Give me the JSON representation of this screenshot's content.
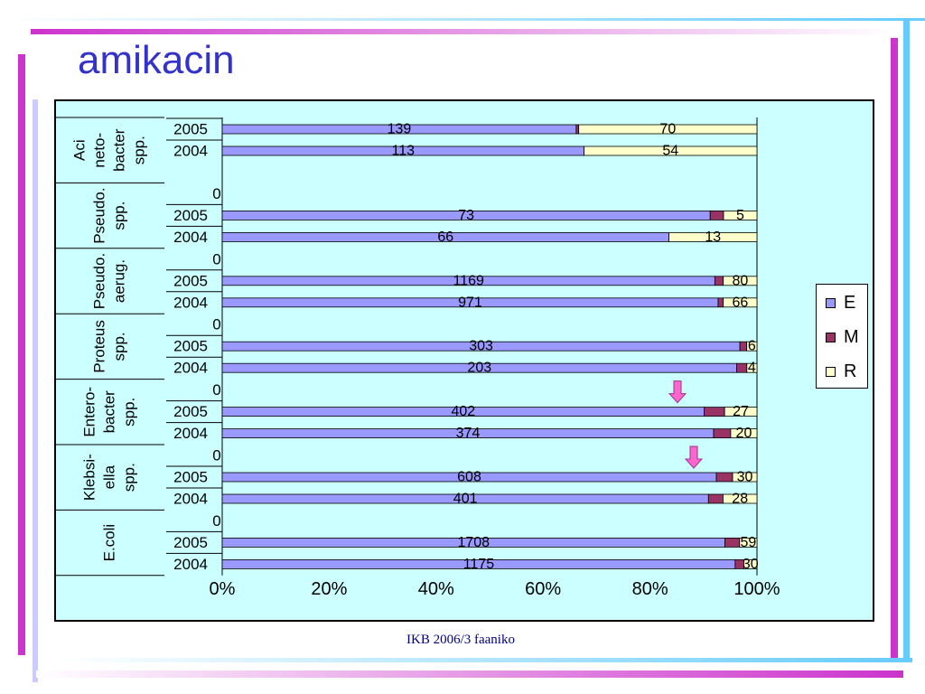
{
  "slide": {
    "title": "amikacin",
    "footer": "IKB 2006/3 faaniko"
  },
  "colors": {
    "E": "#9999ff",
    "M": "#993366",
    "R": "#ffffcc",
    "plot_background": "#ccffff",
    "title": "#3333cc",
    "arrow": "#ff66cc"
  },
  "chart_data": {
    "type": "bar",
    "orientation": "horizontal",
    "stacked": "percent",
    "x_ticks": [
      "0%",
      "20%",
      "40%",
      "60%",
      "80%",
      "100%"
    ],
    "xlim": [
      0,
      100
    ],
    "grid": false,
    "legend_position": "right",
    "legend": [
      "E",
      "M",
      "R"
    ],
    "groups": [
      {
        "label_lines": [
          "Aci",
          "neto-",
          "bacter",
          "spp."
        ],
        "rows": [
          {
            "year": "2005",
            "E": 139,
            "M": 1,
            "R": 70,
            "labels": {
              "E": "139",
              "R": "70"
            }
          },
          {
            "year": "2004",
            "E": 113,
            "M": 0,
            "R": 54,
            "labels": {
              "E": "113",
              "R": "54"
            }
          }
        ]
      },
      {
        "label_lines": [
          "Pseudo.",
          "spp."
        ],
        "zero_label": "0",
        "rows": [
          {
            "year": "2005",
            "E": 73,
            "M": 2,
            "R": 5,
            "labels": {
              "E": "73",
              "R": "5"
            }
          },
          {
            "year": "2004",
            "E": 66,
            "M": 0,
            "R": 13,
            "labels": {
              "E": "66",
              "R": "13"
            }
          }
        ]
      },
      {
        "label_lines": [
          "Pseudo.",
          "aerug."
        ],
        "zero_label": "0",
        "rows": [
          {
            "year": "2005",
            "E": 1169,
            "M": 20,
            "R": 80,
            "labels": {
              "E": "1169",
              "R": "80"
            }
          },
          {
            "year": "2004",
            "E": 971,
            "M": 10,
            "R": 66,
            "labels": {
              "E": "971",
              "R": "66"
            }
          }
        ]
      },
      {
        "label_lines": [
          "Proteus",
          "spp."
        ],
        "zero_label": "0",
        "rows": [
          {
            "year": "2005",
            "E": 303,
            "M": 4,
            "R": 6,
            "labels": {
              "E": "303",
              "R": "6"
            }
          },
          {
            "year": "2004",
            "E": 203,
            "M": 4,
            "R": 4,
            "labels": {
              "E": "203",
              "R": "4"
            }
          }
        ]
      },
      {
        "label_lines": [
          "Entero-",
          "bacter",
          "spp."
        ],
        "zero_label": "0",
        "arrow_row": "2005",
        "rows": [
          {
            "year": "2005",
            "E": 402,
            "M": 17,
            "R": 27,
            "labels": {
              "E": "402",
              "R": "27"
            }
          },
          {
            "year": "2004",
            "E": 374,
            "M": 13,
            "R": 20,
            "labels": {
              "E": "374",
              "R": "20"
            }
          }
        ]
      },
      {
        "label_lines": [
          "Klebsi-",
          "ella",
          "spp."
        ],
        "zero_label": "0",
        "arrow_row": "2005",
        "rows": [
          {
            "year": "2005",
            "E": 608,
            "M": 20,
            "R": 30,
            "labels": {
              "E": "608",
              "R": "30"
            }
          },
          {
            "year": "2004",
            "E": 401,
            "M": 12,
            "R": 28,
            "labels": {
              "E": "401",
              "R": "28"
            }
          }
        ]
      },
      {
        "label_lines": [
          "E.coli"
        ],
        "zero_label": "0",
        "rows": [
          {
            "year": "2005",
            "E": 1708,
            "M": 50,
            "R": 59,
            "labels": {
              "E": "1708",
              "R": "59"
            }
          },
          {
            "year": "2004",
            "E": 1175,
            "M": 20,
            "R": 30,
            "labels": {
              "E": "1175",
              "R": "30"
            }
          }
        ]
      }
    ]
  }
}
